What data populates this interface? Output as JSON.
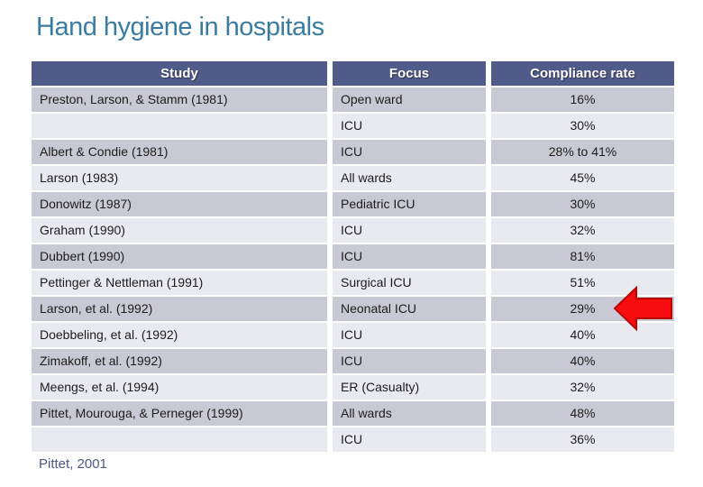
{
  "slide": {
    "title": "Hand hygiene in hospitals",
    "citation": "Pittet, 2001"
  },
  "table": {
    "columns": [
      "Study",
      "Focus",
      "Compliance rate"
    ],
    "rows": [
      {
        "study": "Preston, Larson, & Stamm (1981)",
        "focus": "Open ward",
        "rate": "16%"
      },
      {
        "study": "",
        "focus": "ICU",
        "rate": "30%"
      },
      {
        "study": "Albert & Condie (1981)",
        "focus": "ICU",
        "rate": "28% to 41%"
      },
      {
        "study": "Larson (1983)",
        "focus": "All wards",
        "rate": "45%"
      },
      {
        "study": "Donowitz (1987)",
        "focus": "Pediatric ICU",
        "rate": "30%"
      },
      {
        "study": "Graham (1990)",
        "focus": "ICU",
        "rate": "32%"
      },
      {
        "study": "Dubbert (1990)",
        "focus": "ICU",
        "rate": "81%"
      },
      {
        "study": "Pettinger & Nettleman (1991)",
        "focus": "Surgical ICU",
        "rate": "51%"
      },
      {
        "study": "Larson, et al. (1992)",
        "focus": "Neonatal ICU",
        "rate": "29%",
        "highlighted": true
      },
      {
        "study": "Doebbeling, et al. (1992)",
        "focus": "ICU",
        "rate": "40%"
      },
      {
        "study": "Zimakoff, et al. (1992)",
        "focus": "ICU",
        "rate": "40%"
      },
      {
        "study": "Meengs, et al. (1994)",
        "focus": "ER (Casualty)",
        "rate": "32%"
      },
      {
        "study": "Pittet, Mourouga, & Perneger (1999)",
        "focus": "All wards",
        "rate": "48%"
      },
      {
        "study": "",
        "focus": "ICU",
        "rate": "36%"
      }
    ]
  },
  "annotations": {
    "arrow": {
      "icon": "left-arrow-icon",
      "points_to_row": "Larson, et al. (1992)",
      "points_to_rate": "29%"
    }
  },
  "colors": {
    "title": "#3a7ca0",
    "header_bg": "#515b89",
    "row_dark": "#c9c9d6",
    "row_light": "#e9e9f0",
    "text": "#1c1c1c",
    "citation": "#4d5781",
    "arrow_fill": "#f70d0d",
    "arrow_stroke": "#b70505"
  }
}
